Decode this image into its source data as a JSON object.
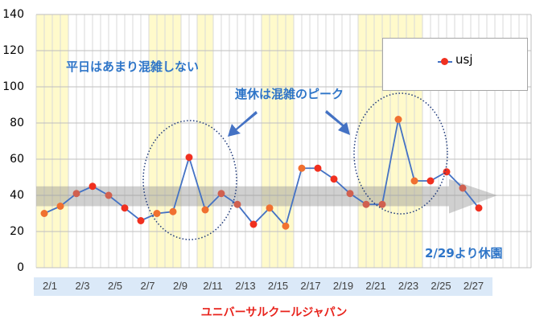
{
  "chart_data": {
    "type": "line",
    "title": "ユニバーサルクールジャパン",
    "series": [
      {
        "name": "usj",
        "x": [
          "2/1",
          "2/2",
          "2/3",
          "2/4",
          "2/5",
          "2/6",
          "2/7",
          "2/8",
          "2/9",
          "2/10",
          "2/11",
          "2/12",
          "2/13",
          "2/14",
          "2/15",
          "2/16",
          "2/17",
          "2/18",
          "2/19",
          "2/20",
          "2/21",
          "2/22",
          "2/23",
          "2/24",
          "2/25",
          "2/26",
          "2/27",
          "2/28"
        ],
        "values": [
          30,
          34,
          41,
          45,
          40,
          33,
          26,
          30,
          31,
          61,
          32,
          41,
          35,
          24,
          33,
          23,
          55,
          55,
          49,
          41,
          35,
          35,
          82,
          48,
          48,
          53,
          44,
          33
        ],
        "point_colors": [
          "#f07030",
          "#f07030",
          "#d06050",
          "#f03020",
          "#d06050",
          "#f03020",
          "#f03020",
          "#f07030",
          "#f07030",
          "#f03020",
          "#f07030",
          "#d06050",
          "#d06050",
          "#f03020",
          "#f07030",
          "#f07030",
          "#f07030",
          "#f03020",
          "#f03020",
          "#d06050",
          "#d06050",
          "#d06050",
          "#f07030",
          "#f07030",
          "#f03020",
          "#f03020",
          "#d06050",
          "#f03020"
        ]
      }
    ],
    "x_tick_labels": [
      "2/1",
      "2/3",
      "2/5",
      "2/7",
      "2/9",
      "2/11",
      "2/13",
      "2/15",
      "2/17",
      "2/19",
      "2/21",
      "2/23",
      "2/25",
      "2/27"
    ],
    "y_ticks": [
      0,
      20,
      40,
      60,
      80,
      100,
      120,
      140
    ],
    "ylim": [
      0,
      140
    ],
    "grid": true,
    "legend": {
      "position": "top-right",
      "entries": [
        "usj"
      ]
    },
    "highlighted_days": [
      [
        "2/1",
        "2/2"
      ],
      [
        "2/8",
        "2/9"
      ],
      [
        "2/11",
        "2/11"
      ],
      [
        "2/15",
        "2/16"
      ],
      [
        "2/21",
        "2/24"
      ]
    ],
    "annotations": {
      "weekday": "平日はあまり混雑しない",
      "holiday_peak": "連休は混雑のピーク",
      "closure": "2/29より休園"
    },
    "colors": {
      "line": "#4472c4",
      "highlight": "#fffacb",
      "annotation": "#2e75c8",
      "title": "#e8231c"
    }
  }
}
